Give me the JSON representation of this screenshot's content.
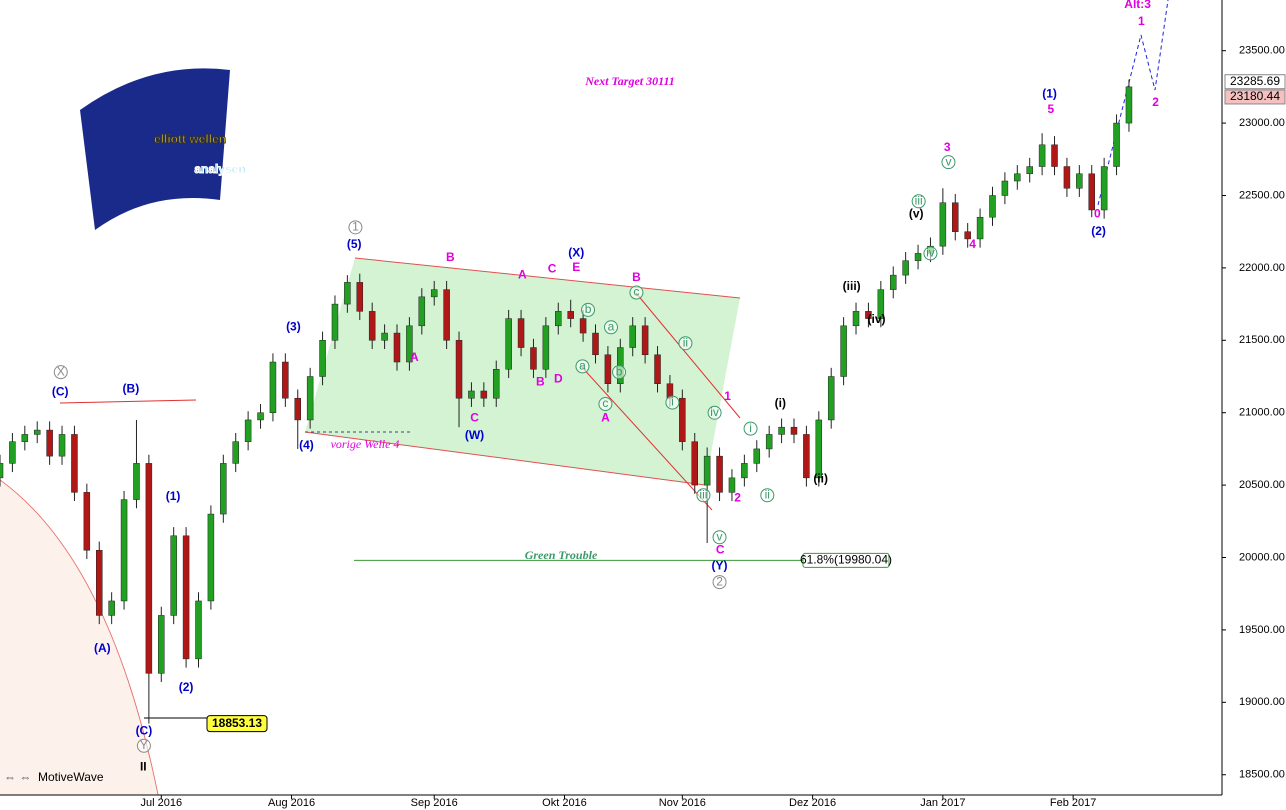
{
  "chart_data": {
    "type": "candlestick",
    "title": "Next Target 30111",
    "headline": "Green Trouble",
    "note": "vorige Welle 4",
    "logo_text": [
      "elliott wellen",
      "analysen"
    ],
    "footer": "MotiveWave",
    "colors": {
      "up": "#22a022",
      "down": "#b01818"
    },
    "xlim": [
      0,
      197
    ],
    "ylim": [
      18360,
      23850
    ],
    "xticks": [
      {
        "value": 26,
        "label": "Jul 2016"
      },
      {
        "value": 47,
        "label": "Aug 2016"
      },
      {
        "value": 70,
        "label": "Sep 2016"
      },
      {
        "value": 91,
        "label": "Okt 2016"
      },
      {
        "value": 110,
        "label": "Nov 2016"
      },
      {
        "value": 131,
        "label": "Dez 2016"
      },
      {
        "value": 152,
        "label": "Jan 2017"
      },
      {
        "value": 173,
        "label": "Feb 2017"
      }
    ],
    "yticks": [
      {
        "value": 18500,
        "label": "18500.00"
      },
      {
        "value": 19000,
        "label": "19000.00"
      },
      {
        "value": 19500,
        "label": "19500.00"
      },
      {
        "value": 20000,
        "label": "20000.00"
      },
      {
        "value": 20500,
        "label": "20500.00"
      },
      {
        "value": 21000,
        "label": "21000.00"
      },
      {
        "value": 21500,
        "label": "21500.00"
      },
      {
        "value": 22000,
        "label": "22000.00"
      },
      {
        "value": 22500,
        "label": "22500.00"
      },
      {
        "value": 23000,
        "label": "23000.00"
      },
      {
        "value": 23500,
        "label": "23500.00"
      }
    ],
    "x": [
      0,
      2,
      4,
      6,
      8,
      10,
      12,
      14,
      16,
      18,
      20,
      22,
      24,
      26,
      28,
      30,
      32,
      34,
      36,
      38,
      40,
      42,
      44,
      46,
      48,
      50,
      52,
      54,
      56,
      58,
      60,
      62,
      64,
      66,
      68,
      70,
      72,
      74,
      76,
      78,
      80,
      82,
      84,
      86,
      88,
      90,
      92,
      94,
      96,
      98,
      100,
      102,
      104,
      106,
      108,
      110,
      112,
      114,
      116,
      118,
      120,
      122,
      124,
      126,
      128,
      130,
      132,
      134,
      136,
      138,
      140,
      142,
      144,
      146,
      148,
      150,
      152,
      154,
      156,
      158,
      160,
      162,
      164,
      166,
      168,
      170,
      172,
      174,
      176,
      178,
      180,
      182
    ],
    "ohlc": [
      [
        20550,
        20710,
        20490,
        20650
      ],
      [
        20650,
        20860,
        20590,
        20800
      ],
      [
        20800,
        20910,
        20740,
        20850
      ],
      [
        20850,
        20940,
        20790,
        20880
      ],
      [
        20880,
        20940,
        20640,
        20700
      ],
      [
        20700,
        20910,
        20640,
        20850
      ],
      [
        20850,
        20910,
        20390,
        20450
      ],
      [
        20450,
        20510,
        19990,
        20050
      ],
      [
        20050,
        20110,
        19540,
        19600
      ],
      [
        19600,
        19760,
        19540,
        19700
      ],
      [
        19700,
        20460,
        19640,
        20400
      ],
      [
        20400,
        20950,
        20340,
        20650
      ],
      [
        20650,
        20710,
        18853.13,
        19200
      ],
      [
        19200,
        19660,
        19140,
        19600
      ],
      [
        19600,
        20210,
        19540,
        20150
      ],
      [
        20150,
        20210,
        19240,
        19300
      ],
      [
        19300,
        19760,
        19240,
        19700
      ],
      [
        19700,
        20360,
        19640,
        20300
      ],
      [
        20300,
        20710,
        20240,
        20650
      ],
      [
        20650,
        20860,
        20590,
        20800
      ],
      [
        20800,
        21010,
        20740,
        20950
      ],
      [
        20950,
        21060,
        20890,
        21000
      ],
      [
        21000,
        21410,
        20940,
        21350
      ],
      [
        21350,
        21410,
        21040,
        21100
      ],
      [
        21100,
        21160,
        20750,
        20950
      ],
      [
        20950,
        21310,
        20890,
        21250
      ],
      [
        21250,
        21560,
        21190,
        21500
      ],
      [
        21500,
        21810,
        21440,
        21750
      ],
      [
        21750,
        21950,
        21690,
        21900
      ],
      [
        21900,
        21960,
        21640,
        21700
      ],
      [
        21700,
        21760,
        21440,
        21500
      ],
      [
        21500,
        21610,
        21440,
        21550
      ],
      [
        21550,
        21610,
        21290,
        21350
      ],
      [
        21350,
        21660,
        21290,
        21600
      ],
      [
        21600,
        21860,
        21540,
        21800
      ],
      [
        21800,
        21910,
        21740,
        21850
      ],
      [
        21850,
        21910,
        21440,
        21500
      ],
      [
        21500,
        21560,
        20900,
        21100
      ],
      [
        21100,
        21210,
        21040,
        21150
      ],
      [
        21150,
        21210,
        21040,
        21100
      ],
      [
        21100,
        21360,
        21040,
        21300
      ],
      [
        21300,
        21710,
        21240,
        21650
      ],
      [
        21650,
        21710,
        21390,
        21450
      ],
      [
        21450,
        21510,
        21240,
        21300
      ],
      [
        21300,
        21660,
        21240,
        21600
      ],
      [
        21600,
        21760,
        21540,
        21700
      ],
      [
        21700,
        21780,
        21590,
        21650
      ],
      [
        21650,
        21710,
        21490,
        21550
      ],
      [
        21550,
        21610,
        21340,
        21400
      ],
      [
        21400,
        21460,
        21140,
        21200
      ],
      [
        21200,
        21510,
        21140,
        21450
      ],
      [
        21450,
        21660,
        21390,
        21600
      ],
      [
        21600,
        21660,
        21340,
        21400
      ],
      [
        21400,
        21460,
        21140,
        21200
      ],
      [
        21200,
        21260,
        21040,
        21100
      ],
      [
        21100,
        21160,
        20740,
        20800
      ],
      [
        20800,
        20860,
        20440,
        20500
      ],
      [
        20500,
        20760,
        20100,
        20700
      ],
      [
        20700,
        20760,
        20390,
        20450
      ],
      [
        20450,
        20610,
        20390,
        20550
      ],
      [
        20550,
        20710,
        20490,
        20650
      ],
      [
        20650,
        20810,
        20590,
        20750
      ],
      [
        20750,
        20910,
        20690,
        20850
      ],
      [
        20850,
        20960,
        20790,
        20900
      ],
      [
        20900,
        20960,
        20790,
        20850
      ],
      [
        20850,
        20910,
        20490,
        20550
      ],
      [
        20550,
        21010,
        20490,
        20950
      ],
      [
        20950,
        21310,
        20890,
        21250
      ],
      [
        21250,
        21660,
        21190,
        21600
      ],
      [
        21600,
        21760,
        21540,
        21700
      ],
      [
        21700,
        21760,
        21590,
        21650
      ],
      [
        21650,
        21910,
        21590,
        21850
      ],
      [
        21850,
        22010,
        21790,
        21950
      ],
      [
        21950,
        22110,
        21890,
        22050
      ],
      [
        22050,
        22160,
        21990,
        22100
      ],
      [
        22100,
        22210,
        22040,
        22150
      ],
      [
        22150,
        22550,
        22090,
        22450
      ],
      [
        22450,
        22510,
        22190,
        22250
      ],
      [
        22250,
        22310,
        22140,
        22200
      ],
      [
        22200,
        22410,
        22140,
        22350
      ],
      [
        22350,
        22560,
        22290,
        22500
      ],
      [
        22500,
        22660,
        22440,
        22600
      ],
      [
        22600,
        22710,
        22540,
        22650
      ],
      [
        22650,
        22760,
        22590,
        22700
      ],
      [
        22700,
        22930,
        22640,
        22850
      ],
      [
        22850,
        22910,
        22640,
        22700
      ],
      [
        22700,
        22760,
        22490,
        22550
      ],
      [
        22550,
        22710,
        22490,
        22650
      ],
      [
        22650,
        22710,
        22350,
        22400
      ],
      [
        22400,
        22760,
        22340,
        22700
      ],
      [
        22700,
        23060,
        22640,
        23000
      ],
      [
        23000,
        23300,
        22940,
        23250
      ]
    ],
    "fib_level": {
      "value": 19980.04,
      "label": "61.8%(19980.04)"
    },
    "price_tags": [
      {
        "value": 23285.69,
        "color": "#ffffff"
      },
      {
        "value": 23180.44,
        "color": "#f4c0c0"
      }
    ],
    "annotations": [
      {
        "text": "(C)",
        "x": 9.7,
        "y": 21140,
        "color": "#0000cc",
        "style": "plain"
      },
      {
        "text": "(B)",
        "x": 21.1,
        "y": 21160,
        "color": "#0000cc",
        "style": "plain"
      },
      {
        "text": "(1)",
        "x": 27.9,
        "y": 20420,
        "color": "#0000cc",
        "style": "plain"
      },
      {
        "text": "(A)",
        "x": 16.5,
        "y": 19370,
        "color": "#0000cc",
        "style": "plain"
      },
      {
        "text": "(2)",
        "x": 30,
        "y": 19100,
        "color": "#0000cc",
        "style": "plain"
      },
      {
        "text": "(C)",
        "x": 23.2,
        "y": 18800,
        "color": "#0000cc",
        "style": "plain"
      },
      {
        "text": "(3)",
        "x": 47.3,
        "y": 21590,
        "color": "#0000cc",
        "style": "plain"
      },
      {
        "text": "(4)",
        "x": 49.4,
        "y": 20770,
        "color": "#0000cc",
        "style": "plain"
      },
      {
        "text": "(5)",
        "x": 57.1,
        "y": 22160,
        "color": "#0000cc",
        "style": "plain"
      },
      {
        "text": "(W)",
        "x": 76.5,
        "y": 20840,
        "color": "#0000cc",
        "style": "plain"
      },
      {
        "text": "(X)",
        "x": 92.9,
        "y": 22100,
        "color": "#0000cc",
        "style": "plain"
      },
      {
        "text": "(Y)",
        "x": 116,
        "y": 19940,
        "color": "#0000cc",
        "style": "plain"
      },
      {
        "text": "(1)",
        "x": 169.2,
        "y": 23200,
        "color": "#0000cc",
        "style": "plain"
      },
      {
        "text": "(2)",
        "x": 177.1,
        "y": 22250,
        "color": "#0000cc",
        "style": "plain"
      },
      {
        "text": "Alt:3",
        "x": 183.4,
        "y": 23818,
        "color": "#e000e0",
        "style": "plain"
      },
      {
        "text": "1",
        "x": 184,
        "y": 23700,
        "color": "#e000e0",
        "style": "plain"
      },
      {
        "text": "2",
        "x": 186.3,
        "y": 23140,
        "color": "#e000e0",
        "style": "plain"
      },
      {
        "text": "B",
        "x": 72.6,
        "y": 22070,
        "color": "#e000e0",
        "style": "plain"
      },
      {
        "text": "A",
        "x": 66.8,
        "y": 21380,
        "color": "#e000e0",
        "style": "plain"
      },
      {
        "text": "C",
        "x": 76.5,
        "y": 20960,
        "color": "#e000e0",
        "style": "plain"
      },
      {
        "text": "A",
        "x": 84.2,
        "y": 21950,
        "color": "#e000e0",
        "style": "plain"
      },
      {
        "text": "C",
        "x": 89,
        "y": 21990,
        "color": "#e000e0",
        "style": "plain"
      },
      {
        "text": "E",
        "x": 92.9,
        "y": 22000,
        "color": "#e000e0",
        "style": "plain"
      },
      {
        "text": "B",
        "x": 87.1,
        "y": 21210,
        "color": "#e000e0",
        "style": "plain"
      },
      {
        "text": "D",
        "x": 90,
        "y": 21230,
        "color": "#e000e0",
        "style": "plain"
      },
      {
        "text": "B",
        "x": 102.6,
        "y": 21930,
        "color": "#e000e0",
        "style": "plain"
      },
      {
        "text": "A",
        "x": 97.6,
        "y": 20960,
        "color": "#e000e0",
        "style": "plain"
      },
      {
        "text": "C",
        "x": 116.1,
        "y": 20050,
        "color": "#e000e0",
        "style": "plain"
      },
      {
        "text": "1",
        "x": 117.3,
        "y": 21110,
        "color": "#e000e0",
        "style": "plain"
      },
      {
        "text": "2",
        "x": 118.9,
        "y": 20410,
        "color": "#e000e0",
        "style": "plain"
      },
      {
        "text": "3",
        "x": 152.7,
        "y": 22830,
        "color": "#e000e0",
        "style": "plain"
      },
      {
        "text": "4",
        "x": 156.8,
        "y": 22160,
        "color": "#e000e0",
        "style": "plain"
      },
      {
        "text": "5",
        "x": 169.4,
        "y": 23090,
        "color": "#e000e0",
        "style": "plain"
      },
      {
        "text": "0",
        "x": 176.9,
        "y": 22370,
        "color": "#e000e0",
        "style": "plain"
      },
      {
        "text": "(i)",
        "x": 125.8,
        "y": 21060,
        "color": "#000000",
        "style": "small"
      },
      {
        "text": "(ii)",
        "x": 132.3,
        "y": 20540,
        "color": "#000000",
        "style": "small"
      },
      {
        "text": "(iii)",
        "x": 137.3,
        "y": 21870,
        "color": "#000000",
        "style": "small"
      },
      {
        "text": "(iv)",
        "x": 141.3,
        "y": 21640,
        "color": "#000000",
        "style": "small"
      },
      {
        "text": "(v)",
        "x": 147.7,
        "y": 22370,
        "color": "#000000",
        "style": "small"
      },
      {
        "text": "b",
        "x": 94.8,
        "y": 21710,
        "color": "#3a9a6a",
        "style": "circle"
      },
      {
        "text": "a",
        "x": 98.5,
        "y": 21590,
        "color": "#3a9a6a",
        "style": "circle"
      },
      {
        "text": "a",
        "x": 93.9,
        "y": 21320,
        "color": "#3a9a6a",
        "style": "circle"
      },
      {
        "text": "b",
        "x": 99.8,
        "y": 21280,
        "color": "#3a9a6a",
        "style": "circle"
      },
      {
        "text": "c",
        "x": 97.6,
        "y": 21060,
        "color": "#3a9a6a",
        "style": "circle"
      },
      {
        "text": "c",
        "x": 102.6,
        "y": 21830,
        "color": "#3a9a6a",
        "style": "circle"
      },
      {
        "text": "i",
        "x": 108.4,
        "y": 21070,
        "color": "#3a9a6a",
        "style": "circle"
      },
      {
        "text": "ii",
        "x": 110.5,
        "y": 21480,
        "color": "#3a9a6a",
        "style": "circle"
      },
      {
        "text": "iii",
        "x": 113.4,
        "y": 20430,
        "color": "#3a9a6a",
        "style": "circle"
      },
      {
        "text": "iv",
        "x": 115.2,
        "y": 21000,
        "color": "#3a9a6a",
        "style": "circle"
      },
      {
        "text": "v",
        "x": 116,
        "y": 20140,
        "color": "#3a9a6a",
        "style": "circle"
      },
      {
        "text": "i",
        "x": 121,
        "y": 20890,
        "color": "#3a9a6a",
        "style": "circle"
      },
      {
        "text": "ii",
        "x": 123.7,
        "y": 20430,
        "color": "#3a9a6a",
        "style": "circle"
      },
      {
        "text": "iii",
        "x": 148.1,
        "y": 22460,
        "color": "#3a9a6a",
        "style": "circle"
      },
      {
        "text": "iv",
        "x": 150,
        "y": 22100,
        "color": "#3a9a6a",
        "style": "circle"
      },
      {
        "text": "v",
        "x": 152.9,
        "y": 22730,
        "color": "#3a9a6a",
        "style": "circle"
      },
      {
        "text": "1",
        "x": 57.3,
        "y": 22280,
        "color": "#888888",
        "style": "circle"
      },
      {
        "text": "2",
        "x": 116,
        "y": 19830,
        "color": "#888888",
        "style": "circle"
      },
      {
        "text": "X",
        "x": 9.8,
        "y": 21280,
        "color": "#888888",
        "style": "circle"
      },
      {
        "text": "Y",
        "x": 23.2,
        "y": 18700,
        "color": "#888888",
        "style": "circle"
      },
      {
        "text": "II",
        "x": 23.1,
        "y": 18550,
        "color": "#000000",
        "style": "bold"
      }
    ]
  }
}
